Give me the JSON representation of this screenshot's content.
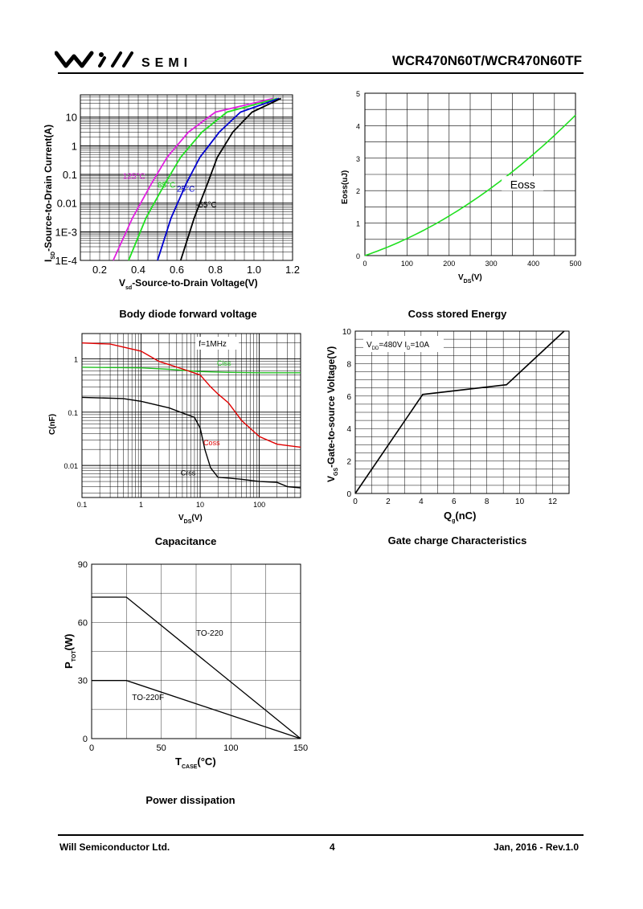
{
  "header": {
    "brand": "SEMI",
    "part_number": "WCR470N60T/WCR470N60TF"
  },
  "footer": {
    "company": "Will Semiconductor Ltd.",
    "page": "4",
    "date_rev": "Jan, 2016 - Rev.1.0"
  },
  "captions": {
    "body_diode": "Body diode forward voltage",
    "coss_energy": "Coss stored Energy",
    "capacitance": "Capacitance",
    "gate_charge": "Gate charge Characteristics",
    "power": "Power dissipation"
  },
  "chart_data": [
    {
      "id": "body_diode",
      "type": "line",
      "ylabel_main": "I",
      "ylabel_sub": "SD",
      "ylabel_rest": "-Source-to-Drain Current(A)",
      "xlabel_main": "V",
      "xlabel_sub": "sd",
      "xlabel_rest": "-Source-to-Drain Voltage(V)",
      "xlim": [
        0.1,
        1.2
      ],
      "ylim": [
        0.0001,
        60
      ],
      "yscale": "log",
      "xticks": [
        "0.2",
        "0.4",
        "0.6",
        "0.8",
        "1.0",
        "1.2"
      ],
      "yticks": [
        "1E-4",
        "1E-3",
        "0.01",
        "0.1",
        "1",
        "10"
      ],
      "series": [
        {
          "name": "125°C",
          "color": "#e020e0",
          "x": [
            0.27,
            0.37,
            0.47,
            0.55,
            0.66,
            0.8,
            1.1
          ],
          "y": [
            0.0001,
            0.003,
            0.05,
            0.4,
            3,
            15,
            45
          ]
        },
        {
          "name": "85°C",
          "color": "#20e020",
          "x": [
            0.35,
            0.44,
            0.54,
            0.62,
            0.73,
            0.86,
            1.12
          ],
          "y": [
            0.0001,
            0.003,
            0.05,
            0.4,
            3,
            15,
            45
          ]
        },
        {
          "name": "25°C",
          "color": "#0000d0",
          "x": [
            0.5,
            0.57,
            0.65,
            0.72,
            0.82,
            0.93,
            1.13
          ],
          "y": [
            0.0001,
            0.003,
            0.05,
            0.4,
            3,
            15,
            45
          ]
        },
        {
          "name": "-55°C",
          "color": "#000000",
          "x": [
            0.62,
            0.69,
            0.76,
            0.81,
            0.89,
            0.99,
            1.14
          ],
          "y": [
            0.0001,
            0.003,
            0.05,
            0.4,
            3,
            15,
            45
          ]
        }
      ],
      "labels": [
        {
          "text": "125°C",
          "color": "#e020e0",
          "x": 0.32,
          "y": 0.07
        },
        {
          "text": "85°C",
          "color": "#20e020",
          "x": 0.5,
          "y": 0.035
        },
        {
          "text": "25°C",
          "color": "#0000d0",
          "x": 0.6,
          "y": 0.025
        },
        {
          "text": "-55°C",
          "color": "#000000",
          "x": 0.7,
          "y": 0.007
        }
      ]
    },
    {
      "id": "coss_energy",
      "type": "line",
      "ylabel": "Eoss(uJ)",
      "xlabel_main": "V",
      "xlabel_sub": "DS",
      "xlabel_rest": "(V)",
      "xlim": [
        0,
        500
      ],
      "ylim": [
        0,
        5
      ],
      "xticks": [
        "0",
        "100",
        "200",
        "300",
        "400",
        "500"
      ],
      "yticks": [
        "0",
        "1",
        "2",
        "3",
        "4",
        "5"
      ],
      "series": [
        {
          "name": "Eoss",
          "color": "#20e020",
          "x": [
            0,
            50,
            100,
            150,
            200,
            250,
            300,
            350,
            400,
            450,
            500
          ],
          "y": [
            0,
            0.22,
            0.6,
            1.0,
            1.4,
            1.8,
            2.25,
            2.7,
            3.15,
            3.6,
            4.6
          ]
        }
      ]
    },
    {
      "id": "capacitance",
      "type": "line",
      "ylabel": "C(nF)",
      "xlabel_main": "V",
      "xlabel_sub": "DS",
      "xlabel_rest": "(V)",
      "xscale": "log",
      "yscale": "log",
      "xlim": [
        0.1,
        500
      ],
      "ylim": [
        0.0025,
        3
      ],
      "xticks": [
        "0.1",
        "1",
        "10",
        "100"
      ],
      "yticks": [
        "0.01",
        "0.1",
        "1"
      ],
      "annotation": "f=1MHz",
      "series": [
        {
          "name": "Ciss",
          "color": "#20c020",
          "x": [
            0.1,
            1,
            3,
            10,
            30,
            100,
            500
          ],
          "y": [
            0.7,
            0.68,
            0.64,
            0.58,
            0.56,
            0.55,
            0.55
          ]
        },
        {
          "name": "Coss",
          "color": "#e00000",
          "x": [
            0.1,
            0.3,
            1,
            2,
            5,
            10,
            15,
            20,
            30,
            50,
            100,
            200,
            500
          ],
          "y": [
            2.0,
            1.9,
            1.4,
            0.9,
            0.65,
            0.5,
            0.3,
            0.22,
            0.15,
            0.07,
            0.035,
            0.025,
            0.022
          ]
        },
        {
          "name": "Crss",
          "color": "#000000",
          "x": [
            0.1,
            0.5,
            1,
            3,
            8,
            10,
            12,
            15,
            20,
            30,
            50,
            100,
            200,
            300,
            500
          ],
          "y": [
            0.19,
            0.18,
            0.16,
            0.12,
            0.08,
            0.05,
            0.02,
            0.009,
            0.006,
            0.0058,
            0.0055,
            0.005,
            0.0048,
            0.004,
            0.0038
          ]
        }
      ]
    },
    {
      "id": "gate_charge",
      "type": "line",
      "ylabel_main": "V",
      "ylabel_sub": "GS",
      "ylabel_rest": "-Gate-to-source Voltage(V)",
      "xlabel_main": "Q",
      "xlabel_sub": "g",
      "xlabel_rest": "(nC)",
      "xlim": [
        0,
        13
      ],
      "ylim": [
        0,
        10
      ],
      "xticks": [
        "0",
        "2",
        "4",
        "6",
        "8",
        "10",
        "12"
      ],
      "yticks": [
        "0",
        "2",
        "4",
        "6",
        "8",
        "10"
      ],
      "annotation_parts": [
        "V",
        "DD",
        "=480V I",
        "D",
        "=10A"
      ],
      "series": [
        {
          "name": "VGS",
          "color": "#000000",
          "x": [
            0,
            4.1,
            9.2,
            12.7
          ],
          "y": [
            0,
            6.1,
            6.7,
            10
          ]
        }
      ]
    },
    {
      "id": "power",
      "type": "line",
      "ylabel_main": "P",
      "ylabel_sub": "TOT",
      "ylabel_rest": "(W)",
      "xlabel_main": "T",
      "xlabel_sub": "CASE",
      "xlabel_rest": "(°C)",
      "xlim": [
        0,
        150
      ],
      "ylim": [
        0,
        90
      ],
      "xticks": [
        "0",
        "50",
        "100",
        "150"
      ],
      "yticks": [
        "0",
        "30",
        "60",
        "90"
      ],
      "series": [
        {
          "name": "TO-220",
          "color": "#000000",
          "x": [
            0,
            25,
            150
          ],
          "y": [
            73,
            73,
            0
          ]
        },
        {
          "name": "TO-220F",
          "color": "#000000",
          "x": [
            0,
            25,
            150
          ],
          "y": [
            30,
            30,
            0
          ]
        }
      ]
    }
  ]
}
